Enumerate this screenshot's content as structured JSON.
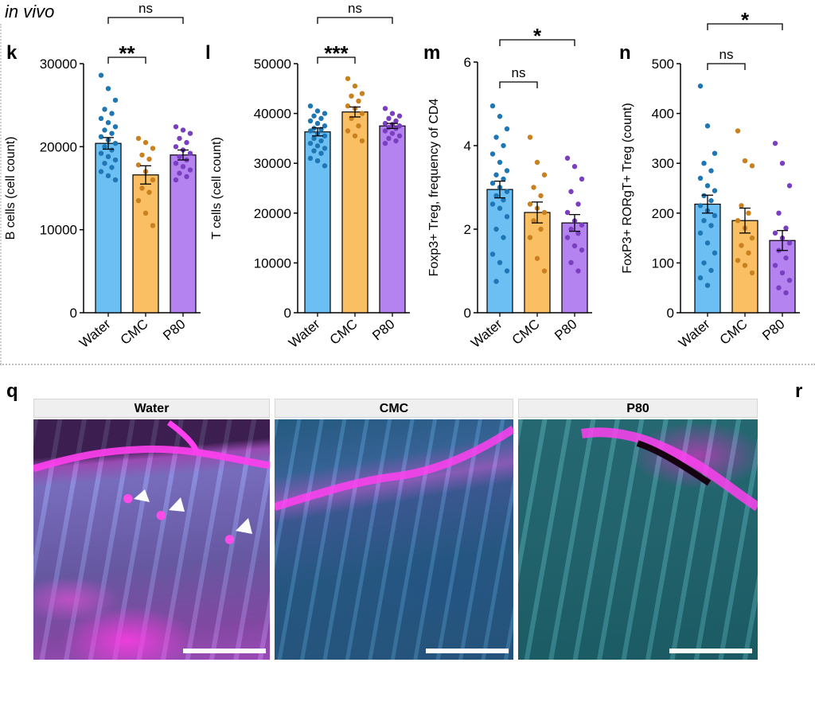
{
  "header": {
    "condition_label": "in vivo"
  },
  "micrograph_section": {
    "panel_letter": "q",
    "next_panel_letter": "r",
    "panels": [
      {
        "label": "Water"
      },
      {
        "label": "CMC"
      },
      {
        "label": "P80"
      }
    ]
  },
  "chart_data": [
    {
      "panel": "k",
      "type": "bar",
      "ylabel": "B cells (cell count)",
      "ylim": [
        0,
        30000
      ],
      "yticks": [
        0,
        10000,
        20000,
        30000
      ],
      "categories": [
        "Water",
        "CMC",
        "P80"
      ],
      "values": [
        20400,
        16600,
        19000
      ],
      "errors": [
        700,
        1100,
        600
      ],
      "colors": [
        "#6cbff2",
        "#fbbf63",
        "#b483f0"
      ],
      "points": [
        [
          28600,
          27000,
          25600,
          24500,
          24000,
          23400,
          22900,
          22400,
          22000,
          21600,
          21200,
          20800,
          20400,
          20000,
          19600,
          19200,
          18800,
          18400,
          18000,
          17500,
          17000,
          16500,
          16000
        ],
        [
          21000,
          20500,
          19800,
          19000,
          18500,
          17800,
          17000,
          16000,
          15000,
          14500,
          13500,
          12000,
          10500
        ],
        [
          22400,
          22000,
          21600,
          21000,
          20500,
          20000,
          19600,
          19200,
          18800,
          18400,
          18000,
          17600,
          17200,
          16800,
          16400,
          16000
        ]
      ],
      "comparisons": [
        {
          "from": 0,
          "to": 1,
          "label": "**"
        },
        {
          "from": 0,
          "to": 2,
          "label": "ns"
        }
      ]
    },
    {
      "panel": "l",
      "type": "bar",
      "ylabel": "T cells (cell count)",
      "ylim": [
        0,
        50000
      ],
      "yticks": [
        0,
        10000,
        20000,
        30000,
        40000,
        50000
      ],
      "categories": [
        "Water",
        "CMC",
        "P80"
      ],
      "values": [
        36300,
        40300,
        37500
      ],
      "errors": [
        800,
        1000,
        500
      ],
      "colors": [
        "#6cbff2",
        "#fbbf63",
        "#b483f0"
      ],
      "points": [
        [
          41500,
          40500,
          40000,
          39500,
          39000,
          38500,
          38000,
          37500,
          37000,
          36800,
          36500,
          36000,
          35500,
          35000,
          34500,
          34000,
          33500,
          33000,
          32500,
          32000,
          31000,
          30500,
          29500
        ],
        [
          47000,
          45500,
          44000,
          43500,
          42500,
          41500,
          41000,
          40000,
          39000,
          37500,
          36500,
          35500,
          34500
        ],
        [
          41000,
          40000,
          39500,
          39000,
          38500,
          38000,
          37800,
          37500,
          37200,
          37000,
          36500,
          36000,
          35500,
          35000,
          34500,
          34000
        ]
      ],
      "comparisons": [
        {
          "from": 0,
          "to": 1,
          "label": "***"
        },
        {
          "from": 0,
          "to": 2,
          "label": "ns"
        }
      ]
    },
    {
      "panel": "m",
      "type": "bar",
      "ylabel": "Foxp3+ Treg, frequency of CD4",
      "ylim": [
        0,
        6
      ],
      "yticks": [
        0,
        2,
        4,
        6
      ],
      "categories": [
        "Water",
        "CMC",
        "P80"
      ],
      "values": [
        2.95,
        2.4,
        2.15
      ],
      "errors": [
        0.2,
        0.25,
        0.2
      ],
      "colors": [
        "#6cbff2",
        "#fbbf63",
        "#b483f0"
      ],
      "points": [
        [
          4.95,
          4.7,
          4.4,
          4.2,
          4.0,
          3.8,
          3.6,
          3.4,
          3.3,
          3.2,
          3.1,
          3.0,
          2.9,
          2.8,
          2.7,
          2.6,
          2.5,
          2.3,
          2.0,
          1.8,
          1.4,
          1.2,
          1.0,
          0.75
        ],
        [
          4.2,
          3.6,
          3.3,
          3.0,
          2.8,
          2.6,
          2.5,
          2.4,
          2.2,
          2.0,
          1.8,
          1.3,
          1.0
        ],
        [
          3.7,
          3.5,
          3.2,
          2.9,
          2.6,
          2.4,
          2.2,
          2.1,
          2.0,
          1.9,
          1.8,
          1.6,
          1.5,
          1.2,
          1.0
        ]
      ],
      "comparisons": [
        {
          "from": 0,
          "to": 1,
          "label": "ns"
        },
        {
          "from": 0,
          "to": 2,
          "label": "*"
        }
      ]
    },
    {
      "panel": "n",
      "type": "bar",
      "ylabel": "FoxP3+ RORgT+ Treg (count)",
      "ylim": [
        0,
        500
      ],
      "yticks": [
        0,
        100,
        200,
        300,
        400,
        500
      ],
      "categories": [
        "Water",
        "CMC",
        "P80"
      ],
      "values": [
        218,
        185,
        145
      ],
      "errors": [
        18,
        25,
        20
      ],
      "colors": [
        "#6cbff2",
        "#fbbf63",
        "#b483f0"
      ],
      "points": [
        [
          455,
          375,
          320,
          300,
          285,
          270,
          255,
          245,
          235,
          225,
          215,
          205,
          195,
          185,
          175,
          160,
          140,
          120,
          100,
          85,
          70,
          55
        ],
        [
          365,
          305,
          295,
          215,
          200,
          185,
          170,
          150,
          135,
          120,
          105,
          95,
          80
        ],
        [
          340,
          300,
          255,
          200,
          170,
          160,
          150,
          140,
          125,
          110,
          95,
          80,
          65,
          50,
          40
        ]
      ],
      "comparisons": [
        {
          "from": 0,
          "to": 1,
          "label": "ns"
        },
        {
          "from": 0,
          "to": 2,
          "label": "*"
        }
      ]
    }
  ]
}
